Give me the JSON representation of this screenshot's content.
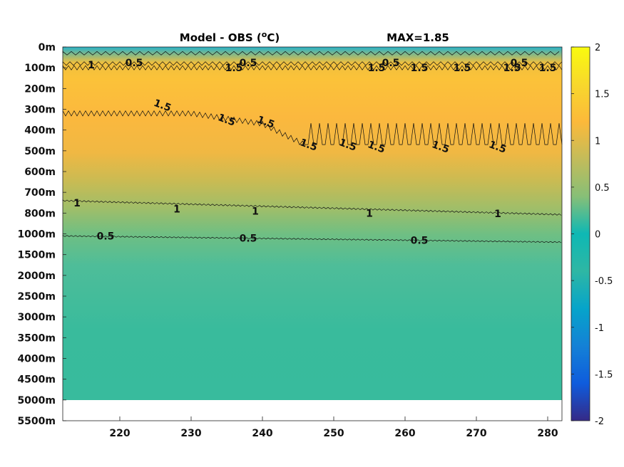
{
  "chart_data": {
    "type": "heatmap",
    "title": "Model - OBS (",
    "title_unit": "o",
    "title_suffix": "C)",
    "max_label": "MAX=1.85",
    "x_ticks": [
      220,
      230,
      240,
      250,
      260,
      270,
      280
    ],
    "xlim": [
      212,
      282
    ],
    "y_tick_labels": [
      "0m",
      "100m",
      "200m",
      "300m",
      "400m",
      "500m",
      "600m",
      "700m",
      "800m",
      "1000m",
      "1500m",
      "2000m",
      "2500m",
      "3000m",
      "3500m",
      "4000m",
      "4500m",
      "5000m",
      "5500m"
    ],
    "y_data_bottom_label": "5000m",
    "colorbar": {
      "ticks": [
        2,
        1.5,
        1,
        0.5,
        0,
        -0.5,
        -1,
        -1.5,
        -2
      ],
      "tick_labels": [
        "2",
        "1.5",
        "1",
        "0.5",
        "0",
        "-0.5",
        "-1",
        "-1.5",
        "-2"
      ],
      "range": [
        -2,
        2
      ],
      "colormap": "parula"
    },
    "contours": [
      {
        "level": 0.5,
        "label": "0.5",
        "depth_label_positions": [
          "0m-100m",
          "1000m-1500m"
        ]
      },
      {
        "level": 1,
        "label": "1",
        "depth_label_positions": [
          "0m-100m",
          "700m-800m"
        ]
      },
      {
        "level": 1.5,
        "label": "1.5",
        "depth_label_positions": [
          "100m-500m"
        ]
      }
    ],
    "contour_labels": [
      {
        "text": "0.5",
        "x": 222,
        "y": "75m"
      },
      {
        "text": "0.5",
        "x": 238,
        "y": "75m"
      },
      {
        "text": "0.5",
        "x": 258,
        "y": "75m"
      },
      {
        "text": "0.5",
        "x": 276,
        "y": "75m"
      },
      {
        "text": "1",
        "x": 216,
        "y": "85m"
      },
      {
        "text": "1.5",
        "x": 226,
        "y": "280m"
      },
      {
        "text": "1.5",
        "x": 235,
        "y": "350m"
      },
      {
        "text": "1.5",
        "x": 240.5,
        "y": "360m"
      },
      {
        "text": "1.5",
        "x": 246.5,
        "y": "470m"
      },
      {
        "text": "1.5",
        "x": 252,
        "y": "470m"
      },
      {
        "text": "1.5",
        "x": 256,
        "y": "480m"
      },
      {
        "text": "1.5",
        "x": 265,
        "y": "480m"
      },
      {
        "text": "1.5",
        "x": 273,
        "y": "480m"
      },
      {
        "text": "1.5",
        "x": 236,
        "y": "100m"
      },
      {
        "text": "1.5",
        "x": 256,
        "y": "100m"
      },
      {
        "text": "1.5",
        "x": 262,
        "y": "100m"
      },
      {
        "text": "1.5",
        "x": 268,
        "y": "100m"
      },
      {
        "text": "1.5",
        "x": 275,
        "y": "100m"
      },
      {
        "text": "1.5",
        "x": 280,
        "y": "100m"
      },
      {
        "text": "1",
        "x": 214,
        "y": "750m"
      },
      {
        "text": "1",
        "x": 228,
        "y": "780m"
      },
      {
        "text": "1",
        "x": 239,
        "y": "790m"
      },
      {
        "text": "1",
        "x": 255,
        "y": "800m"
      },
      {
        "text": "1",
        "x": 273,
        "y": "805m"
      },
      {
        "text": "0.5",
        "x": 218,
        "y": "1050m"
      },
      {
        "text": "0.5",
        "x": 238,
        "y": "1100m"
      },
      {
        "text": "0.5",
        "x": 262,
        "y": "1150m"
      }
    ]
  }
}
